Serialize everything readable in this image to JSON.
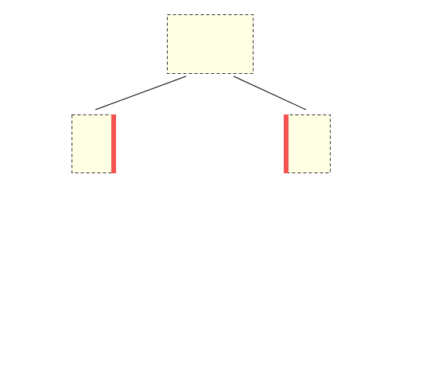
{
  "diagram": {
    "background_color": "#ffffff",
    "node_fill_color": "#ffffe4",
    "node_border_color": "#333333",
    "edge_color": "#000000",
    "marker_color": "#f55353",
    "nodes": [
      {
        "id": "root",
        "label": ""
      },
      {
        "id": "left-child",
        "label": "",
        "marker_side": "right"
      },
      {
        "id": "right-child",
        "label": "",
        "marker_side": "left"
      }
    ],
    "edges": [
      {
        "from": "root",
        "to": "left-child"
      },
      {
        "from": "root",
        "to": "right-child"
      }
    ]
  }
}
